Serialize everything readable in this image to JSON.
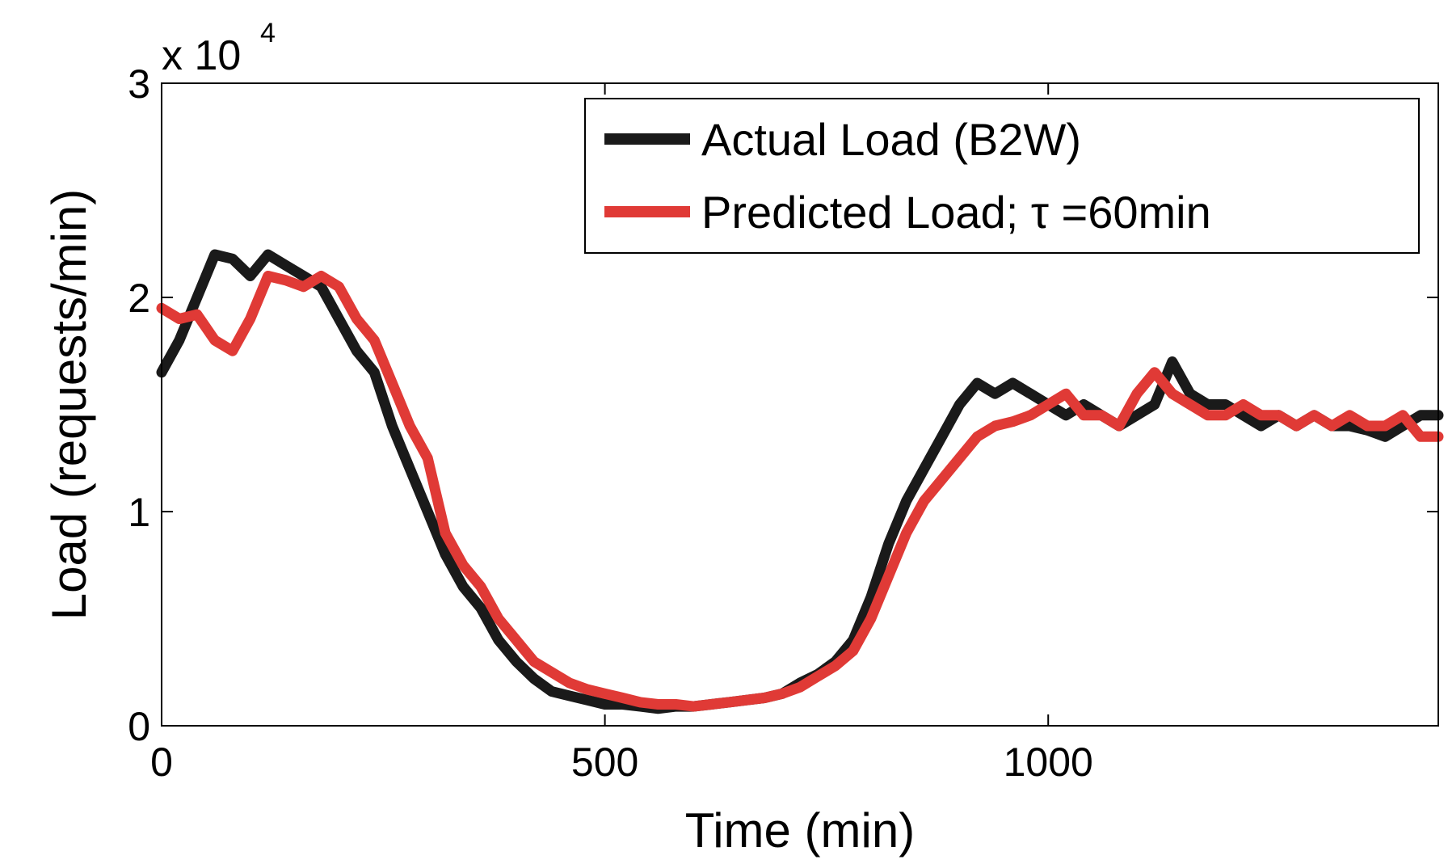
{
  "chart_data": {
    "type": "line",
    "xlabel": "Time (min)",
    "ylabel": "Load (requests/min)",
    "xlim": [
      0,
      1440
    ],
    "ylim": [
      0,
      30000
    ],
    "x_ticks": [
      0,
      500,
      1000
    ],
    "x_tick_labels": [
      "0",
      "500",
      "1000"
    ],
    "y_ticks": [
      0,
      10000,
      20000,
      30000
    ],
    "y_tick_labels": [
      "0",
      "1",
      "2",
      "3"
    ],
    "y_multiplier_label": "x 10",
    "y_multiplier_exponent": "4",
    "grid": false,
    "legend_position": "top-right",
    "series": [
      {
        "name": "Actual Load (B2W)",
        "color": "#1a1a1a",
        "x": [
          0,
          20,
          40,
          60,
          80,
          100,
          120,
          140,
          160,
          180,
          200,
          220,
          240,
          260,
          280,
          300,
          320,
          340,
          360,
          380,
          400,
          420,
          440,
          460,
          480,
          500,
          520,
          540,
          560,
          580,
          600,
          620,
          640,
          660,
          680,
          700,
          720,
          740,
          760,
          780,
          800,
          820,
          840,
          860,
          880,
          900,
          920,
          940,
          960,
          980,
          1000,
          1020,
          1040,
          1060,
          1080,
          1100,
          1120,
          1140,
          1160,
          1180,
          1200,
          1220,
          1240,
          1260,
          1280,
          1300,
          1320,
          1340,
          1360,
          1380,
          1400,
          1420,
          1440
        ],
        "y": [
          16500,
          18000,
          20000,
          22000,
          21800,
          21000,
          22000,
          21500,
          21000,
          20500,
          19000,
          17500,
          16500,
          14000,
          12000,
          10000,
          8000,
          6500,
          5500,
          4000,
          3000,
          2200,
          1600,
          1400,
          1200,
          1000,
          1000,
          900,
          800,
          900,
          900,
          1000,
          1100,
          1200,
          1300,
          1500,
          2000,
          2400,
          3000,
          4000,
          6000,
          8500,
          10500,
          12000,
          13500,
          15000,
          16000,
          15500,
          16000,
          15500,
          15000,
          14500,
          15000,
          14500,
          14000,
          14500,
          15000,
          17000,
          15500,
          15000,
          15000,
          14500,
          14000,
          14500,
          14000,
          14500,
          14000,
          14000,
          13800,
          13500,
          14000,
          14500,
          14500
        ]
      },
      {
        "name": "Predicted Load; τ =60min",
        "color": "#e03a36",
        "x": [
          0,
          20,
          40,
          60,
          80,
          100,
          120,
          140,
          160,
          180,
          200,
          220,
          240,
          260,
          280,
          300,
          320,
          340,
          360,
          380,
          400,
          420,
          440,
          460,
          480,
          500,
          520,
          540,
          560,
          580,
          600,
          620,
          640,
          660,
          680,
          700,
          720,
          740,
          760,
          780,
          800,
          820,
          840,
          860,
          880,
          900,
          920,
          940,
          960,
          980,
          1000,
          1020,
          1040,
          1060,
          1080,
          1100,
          1120,
          1140,
          1160,
          1180,
          1200,
          1220,
          1240,
          1260,
          1280,
          1300,
          1320,
          1340,
          1360,
          1380,
          1400,
          1420,
          1440
        ],
        "y": [
          19500,
          19000,
          19200,
          18000,
          17500,
          19000,
          21000,
          20800,
          20500,
          21000,
          20500,
          19000,
          18000,
          16000,
          14000,
          12500,
          9000,
          7500,
          6500,
          5000,
          4000,
          3000,
          2500,
          2000,
          1700,
          1500,
          1300,
          1100,
          1000,
          1000,
          900,
          1000,
          1100,
          1200,
          1300,
          1500,
          1800,
          2300,
          2800,
          3500,
          5000,
          7000,
          9000,
          10500,
          11500,
          12500,
          13500,
          14000,
          14200,
          14500,
          15000,
          15500,
          14500,
          14500,
          14000,
          15500,
          16500,
          15500,
          15000,
          14500,
          14500,
          15000,
          14500,
          14500,
          14000,
          14500,
          14000,
          14500,
          14000,
          14000,
          14500,
          13500,
          13500
        ]
      }
    ]
  }
}
